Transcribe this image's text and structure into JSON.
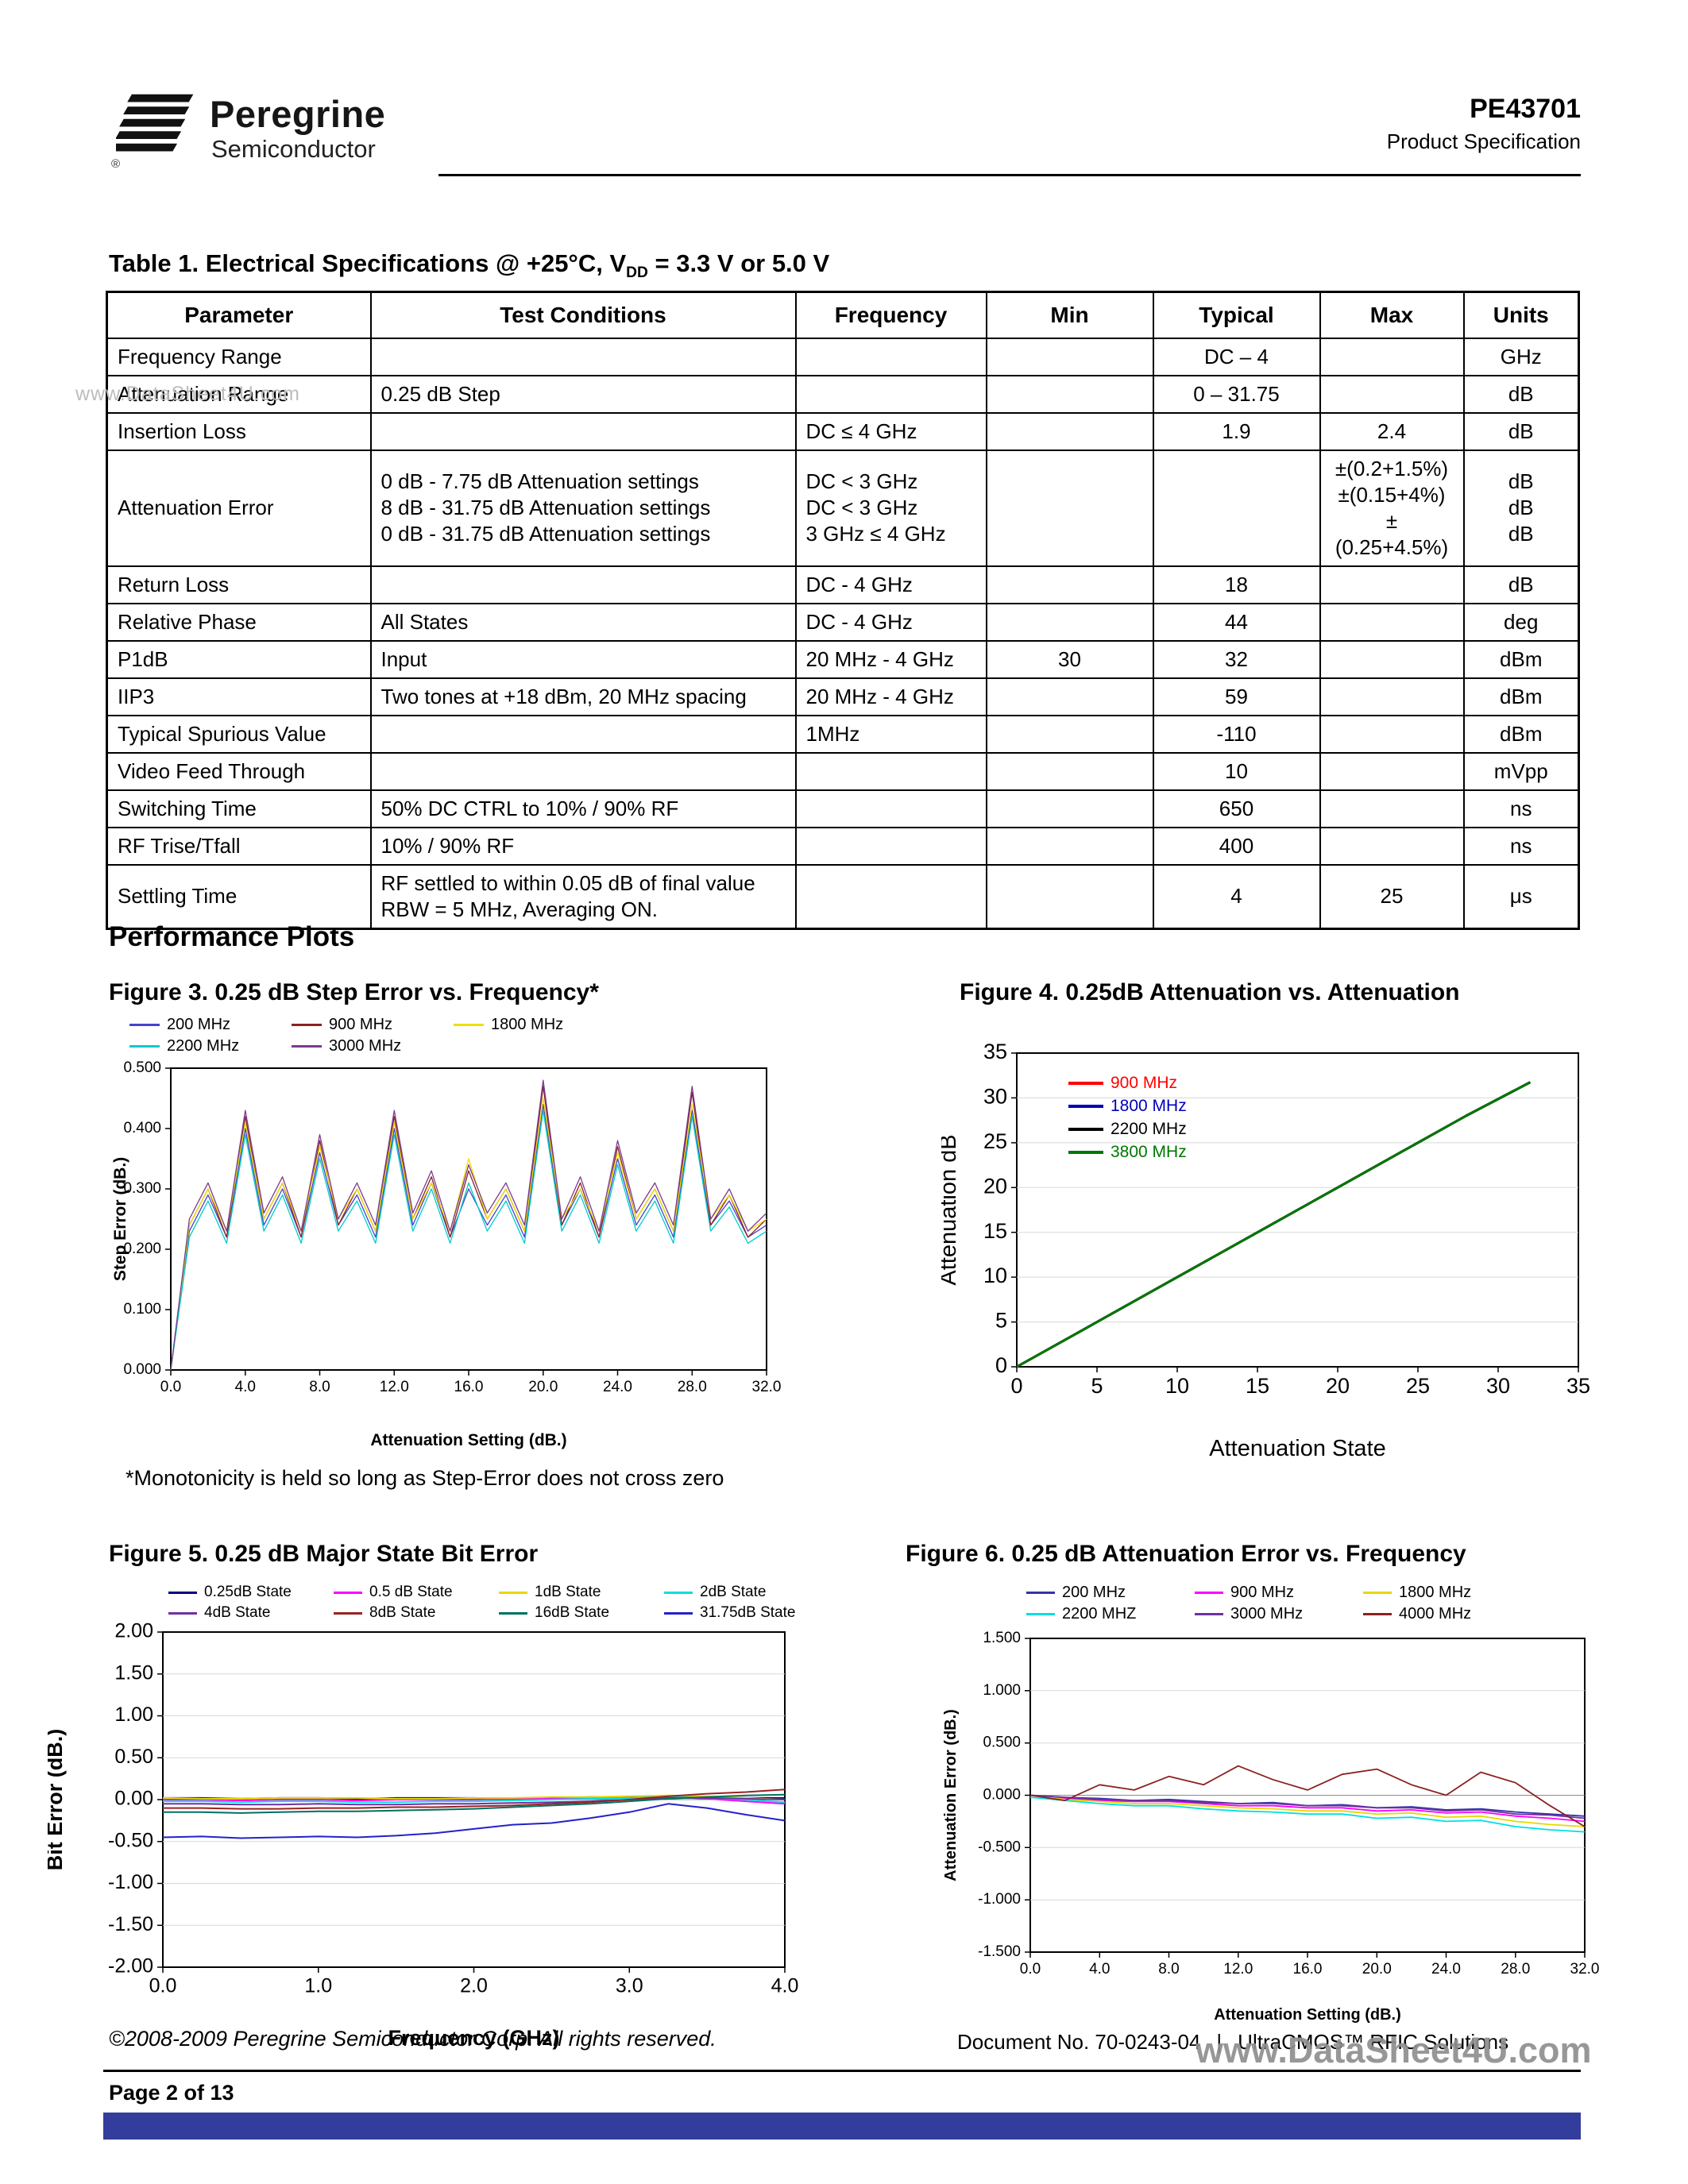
{
  "header": {
    "brand_name": "Peregrine",
    "brand_reg": "®",
    "brand_sub": "Semiconductor",
    "part_number": "PE43701",
    "doc_type": "Product Specification"
  },
  "watermarks": {
    "side": "www.DataSheet4U.com",
    "footer": "www.DataSheet4U.com"
  },
  "table": {
    "title_prefix": "Table 1. Electrical Specifications @ +25°C, V",
    "title_sub": "DD",
    "title_suffix": " = 3.3 V or 5.0 V",
    "headers": [
      "Parameter",
      "Test Conditions",
      "Frequency",
      "Min",
      "Typical",
      "Max",
      "Units"
    ],
    "rows": [
      {
        "parameter": "Frequency Range",
        "conditions": "",
        "frequency": "",
        "min": "",
        "typical": "DC – 4",
        "max": "",
        "units": "GHz"
      },
      {
        "parameter": "Attenuation Range",
        "conditions": "0.25 dB Step",
        "frequency": "",
        "min": "",
        "typical": "0 – 31.75",
        "max": "",
        "units": "dB"
      },
      {
        "parameter": "Insertion Loss",
        "conditions": "",
        "frequency": "DC  ≤ 4 GHz",
        "min": "",
        "typical": "1.9",
        "max": "2.4",
        "units": "dB"
      },
      {
        "parameter": "Attenuation Error",
        "conditions": "0 dB - 7.75 dB Attenuation settings\n8 dB - 31.75 dB Attenuation settings\n0 dB - 31.75 dB Attenuation settings",
        "frequency": "DC < 3 GHz\nDC < 3 GHz\n3 GHz ≤ 4 GHz",
        "min": "",
        "typical": "",
        "max": "±(0.2+1.5%)\n±(0.15+4%)\n±(0.25+4.5%)",
        "units": "dB\ndB\ndB"
      },
      {
        "parameter": "Return Loss",
        "conditions": "",
        "frequency": "DC - 4 GHz",
        "min": "",
        "typical": "18",
        "max": "",
        "units": "dB"
      },
      {
        "parameter": "Relative Phase",
        "conditions": "All States",
        "frequency": "DC - 4 GHz",
        "min": "",
        "typical": "44",
        "max": "",
        "units": "deg"
      },
      {
        "parameter": "P1dB",
        "conditions": "Input",
        "frequency": "20 MHz - 4 GHz",
        "min": "30",
        "typical": "32",
        "max": "",
        "units": "dBm"
      },
      {
        "parameter": "IIP3",
        "conditions": "Two tones at +18 dBm, 20 MHz spacing",
        "frequency": "20 MHz - 4 GHz",
        "min": "",
        "typical": "59",
        "max": "",
        "units": "dBm"
      },
      {
        "parameter": "Typical Spurious Value",
        "conditions": "",
        "frequency": "1MHz",
        "min": "",
        "typical": "-110",
        "max": "",
        "units": "dBm"
      },
      {
        "parameter": "Video Feed Through",
        "conditions": "",
        "frequency": "",
        "min": "",
        "typical": "10",
        "max": "",
        "units": "mVpp"
      },
      {
        "parameter": "Switching Time",
        "conditions": "50% DC CTRL to 10% / 90% RF",
        "frequency": "",
        "min": "",
        "typical": "650",
        "max": "",
        "units": "ns"
      },
      {
        "parameter": "RF Trise/Tfall",
        "conditions": "10% / 90% RF",
        "frequency": "",
        "min": "",
        "typical": "400",
        "max": "",
        "units": "ns"
      },
      {
        "parameter": "Settling Time",
        "conditions": "RF settled to within 0.05 dB of final value\nRBW = 5 MHz, Averaging ON.",
        "frequency": "",
        "min": "",
        "typical": "4",
        "max": "25",
        "units": "μs"
      }
    ]
  },
  "sections": {
    "performance_plots": "Performance Plots"
  },
  "notes": {
    "fig3_note": "*Monotonicity is held so long as Step-Error does not cross zero"
  },
  "footer": {
    "copyright": "©2008-2009 Peregrine Semiconductor Corp.  All rights reserved.",
    "doc_no": "Document No. 70-0243-04",
    "separator": "|",
    "product_line": "UltraCMOS™ RFIC Solutions",
    "page": "Page  2 of 13"
  },
  "colors": {
    "footer_bar": "#333d9b",
    "watermark_footer": "#8f8f8f",
    "watermark_side": "#bdbdbd"
  },
  "chart_data": [
    {
      "type": "line",
      "title": "Figure 3. 0.25 dB Step Error vs. Frequency*",
      "xlabel": "Attenuation Setting (dB.)",
      "ylabel": "Step Error (dB.)",
      "xlim": [
        0,
        32
      ],
      "ylim": [
        0,
        0.5
      ],
      "xticks": [
        0,
        4,
        8,
        12,
        16,
        20,
        24,
        28,
        32
      ],
      "xtick_decimals": 1,
      "yticks": [
        0,
        0.1,
        0.2,
        0.3,
        0.4,
        0.5
      ],
      "ytick_decimals": 3,
      "grid": "none",
      "line_width": 1.3,
      "x_start": 0,
      "x_step": 1,
      "legend_position": "above",
      "legend_colored_text": false,
      "series": [
        {
          "name": "200 MHz",
          "color": "#4444cc",
          "values": [
            0.0,
            0.23,
            0.29,
            0.22,
            0.4,
            0.24,
            0.3,
            0.22,
            0.36,
            0.24,
            0.29,
            0.22,
            0.4,
            0.24,
            0.31,
            0.22,
            0.3,
            0.24,
            0.29,
            0.22,
            0.44,
            0.24,
            0.3,
            0.22,
            0.35,
            0.24,
            0.29,
            0.22,
            0.43,
            0.24,
            0.28,
            0.22,
            0.24
          ]
        },
        {
          "name": "900 MHz",
          "color": "#8b2222",
          "values": [
            0.0,
            0.24,
            0.3,
            0.22,
            0.42,
            0.25,
            0.31,
            0.22,
            0.38,
            0.24,
            0.3,
            0.23,
            0.42,
            0.25,
            0.32,
            0.22,
            0.33,
            0.25,
            0.3,
            0.23,
            0.47,
            0.24,
            0.31,
            0.22,
            0.37,
            0.25,
            0.3,
            0.23,
            0.46,
            0.24,
            0.29,
            0.22,
            0.25
          ]
        },
        {
          "name": "1800 MHz",
          "color": "#efe000",
          "values": [
            0.0,
            0.24,
            0.3,
            0.23,
            0.41,
            0.25,
            0.31,
            0.23,
            0.37,
            0.25,
            0.3,
            0.23,
            0.41,
            0.25,
            0.31,
            0.23,
            0.35,
            0.25,
            0.3,
            0.23,
            0.45,
            0.25,
            0.3,
            0.23,
            0.36,
            0.25,
            0.3,
            0.23,
            0.44,
            0.25,
            0.29,
            0.23,
            0.25
          ]
        },
        {
          "name": "2200 MHz",
          "color": "#00cccc",
          "values": [
            0.0,
            0.22,
            0.28,
            0.21,
            0.39,
            0.23,
            0.29,
            0.21,
            0.35,
            0.23,
            0.28,
            0.21,
            0.39,
            0.23,
            0.3,
            0.21,
            0.31,
            0.23,
            0.28,
            0.21,
            0.43,
            0.23,
            0.29,
            0.21,
            0.34,
            0.23,
            0.28,
            0.21,
            0.42,
            0.23,
            0.27,
            0.21,
            0.23
          ]
        },
        {
          "name": "3000 MHz",
          "color": "#7a3b8f",
          "values": [
            0.0,
            0.25,
            0.31,
            0.23,
            0.43,
            0.26,
            0.32,
            0.23,
            0.39,
            0.25,
            0.31,
            0.24,
            0.43,
            0.26,
            0.33,
            0.23,
            0.34,
            0.26,
            0.31,
            0.24,
            0.48,
            0.25,
            0.32,
            0.23,
            0.38,
            0.26,
            0.31,
            0.24,
            0.47,
            0.25,
            0.3,
            0.23,
            0.26
          ]
        }
      ]
    },
    {
      "type": "line",
      "title": "Figure 4. 0.25dB Attenuation vs. Attenuation",
      "xlabel": "Attenuation  State",
      "ylabel": "Attenuation  dB",
      "xlim": [
        0,
        35
      ],
      "ylim": [
        0,
        35
      ],
      "xticks": [
        0,
        5,
        10,
        15,
        20,
        25,
        30,
        35
      ],
      "xtick_decimals": 0,
      "yticks": [
        0,
        5,
        10,
        15,
        20,
        25,
        30,
        35
      ],
      "ytick_decimals": 0,
      "grid": "h",
      "line_width": 3,
      "x_start": 0,
      "x_step": 4,
      "legend_position": "inside",
      "legend_colored_text": true,
      "series": [
        {
          "name": "900 MHz",
          "color": "#ff0000",
          "values": [
            0,
            4,
            8,
            12,
            16,
            20,
            24,
            28,
            31.75
          ]
        },
        {
          "name": "1800 MHz",
          "color": "#0000bb",
          "values": [
            0,
            4,
            8,
            12,
            16,
            20,
            24,
            28,
            31.75
          ]
        },
        {
          "name": "2200 MHz",
          "color": "#000000",
          "values": [
            0,
            4,
            8,
            12,
            16,
            20,
            24,
            28,
            31.75
          ]
        },
        {
          "name": "3800 MHz",
          "color": "#007700",
          "values": [
            0,
            4,
            8,
            12,
            16,
            20,
            24,
            28,
            31.75
          ]
        }
      ]
    },
    {
      "type": "line",
      "title": "Figure 5.  0.25 dB Major State Bit Error",
      "xlabel": "Frequency (GHz)",
      "ylabel": "Bit Error (dB.)",
      "xlim": [
        0,
        4
      ],
      "ylim": [
        -2,
        2
      ],
      "xticks": [
        0,
        1,
        2,
        3,
        4
      ],
      "xtick_decimals": 1,
      "yticks": [
        -2,
        -1.5,
        -1,
        -0.5,
        0,
        0.5,
        1,
        1.5,
        2
      ],
      "ytick_decimals": 2,
      "grid": "h",
      "line_width": 2,
      "x_start": 0,
      "x_step": 0.25,
      "legend_position": "above",
      "legend_colored_text": false,
      "series": [
        {
          "name": "0.25dB State",
          "color": "#000080",
          "values": [
            0.02,
            0.02,
            0.01,
            0.02,
            0.02,
            0.01,
            0.02,
            0.02,
            0.02,
            0.01,
            0.02,
            0.03,
            0.03,
            0.04,
            0.03,
            0.02,
            0.02
          ]
        },
        {
          "name": "0.5 dB State",
          "color": "#ff00ff",
          "values": [
            0.0,
            0.0,
            -0.01,
            0.0,
            0.0,
            -0.01,
            0.0,
            0.0,
            0.0,
            0.01,
            0.01,
            0.02,
            0.02,
            0.03,
            0.01,
            -0.02,
            -0.05
          ]
        },
        {
          "name": "1dB State",
          "color": "#e8d800",
          "values": [
            0.02,
            0.01,
            0.01,
            0.02,
            0.02,
            0.02,
            0.01,
            0.01,
            0.02,
            0.02,
            0.03,
            0.03,
            0.04,
            0.05,
            0.04,
            0.02,
            0.0
          ]
        },
        {
          "name": "2dB State",
          "color": "#00e0e0",
          "values": [
            -0.02,
            -0.02,
            -0.03,
            -0.02,
            -0.02,
            -0.03,
            -0.03,
            -0.02,
            -0.02,
            -0.01,
            0.0,
            0.01,
            0.02,
            0.03,
            0.02,
            0.0,
            -0.03
          ]
        },
        {
          "name": "4dB State",
          "color": "#7030a0",
          "values": [
            -0.05,
            -0.05,
            -0.06,
            -0.06,
            -0.05,
            -0.06,
            -0.06,
            -0.05,
            -0.05,
            -0.04,
            -0.03,
            -0.02,
            0.0,
            0.02,
            0.02,
            0.01,
            0.0
          ]
        },
        {
          "name": "8dB State",
          "color": "#992222",
          "values": [
            -0.1,
            -0.1,
            -0.11,
            -0.11,
            -0.1,
            -0.1,
            -0.09,
            -0.09,
            -0.08,
            -0.07,
            -0.05,
            -0.03,
            0.0,
            0.04,
            0.07,
            0.09,
            0.12
          ]
        },
        {
          "name": "16dB State",
          "color": "#007060",
          "values": [
            -0.15,
            -0.15,
            -0.16,
            -0.15,
            -0.14,
            -0.14,
            -0.13,
            -0.12,
            -0.11,
            -0.09,
            -0.07,
            -0.05,
            -0.02,
            0.01,
            0.03,
            0.05,
            0.06
          ]
        },
        {
          "name": "31.75dB State",
          "color": "#2222cc",
          "values": [
            -0.45,
            -0.44,
            -0.46,
            -0.45,
            -0.44,
            -0.45,
            -0.43,
            -0.4,
            -0.35,
            -0.3,
            -0.28,
            -0.22,
            -0.15,
            -0.05,
            -0.1,
            -0.18,
            -0.25
          ]
        }
      ]
    },
    {
      "type": "line",
      "title": "Figure 6. 0.25 dB  Attenuation Error vs. Frequency",
      "xlabel": "Attenuation Setting (dB.)",
      "ylabel": "Attenuation Error (dB.)",
      "xlim": [
        0,
        32
      ],
      "ylim": [
        -1.5,
        1.5
      ],
      "xticks": [
        0,
        4,
        8,
        12,
        16,
        20,
        24,
        28,
        32
      ],
      "xtick_decimals": 1,
      "yticks": [
        -1.5,
        -1,
        -0.5,
        0,
        0.5,
        1,
        1.5
      ],
      "ytick_decimals": 3,
      "grid": "h",
      "line_width": 1.8,
      "x_start": 0,
      "x_step": 2,
      "legend_position": "above",
      "legend_colored_text": false,
      "series": [
        {
          "name": "200 MHz",
          "color": "#3333aa",
          "values": [
            0.0,
            -0.02,
            -0.03,
            -0.05,
            -0.04,
            -0.06,
            -0.08,
            -0.07,
            -0.1,
            -0.09,
            -0.12,
            -0.11,
            -0.14,
            -0.13,
            -0.16,
            -0.18,
            -0.2
          ]
        },
        {
          "name": "900 MHz",
          "color": "#ff00ff",
          "values": [
            0.0,
            -0.03,
            -0.05,
            -0.06,
            -0.06,
            -0.08,
            -0.1,
            -0.1,
            -0.12,
            -0.12,
            -0.15,
            -0.14,
            -0.17,
            -0.16,
            -0.2,
            -0.22,
            -0.25
          ]
        },
        {
          "name": "1800 MHz",
          "color": "#e8d800",
          "values": [
            0.0,
            -0.04,
            -0.06,
            -0.08,
            -0.08,
            -0.1,
            -0.12,
            -0.13,
            -0.15,
            -0.15,
            -0.18,
            -0.17,
            -0.21,
            -0.2,
            -0.25,
            -0.28,
            -0.3
          ]
        },
        {
          "name": "2200 MHZ",
          "color": "#00e0e0",
          "values": [
            -0.02,
            -0.05,
            -0.08,
            -0.1,
            -0.1,
            -0.13,
            -0.15,
            -0.16,
            -0.18,
            -0.18,
            -0.22,
            -0.21,
            -0.25,
            -0.24,
            -0.3,
            -0.33,
            -0.35
          ]
        },
        {
          "name": "3000 MHz",
          "color": "#7030a0",
          "values": [
            0.0,
            -0.02,
            -0.04,
            -0.05,
            -0.05,
            -0.07,
            -0.08,
            -0.08,
            -0.1,
            -0.1,
            -0.12,
            -0.12,
            -0.15,
            -0.14,
            -0.18,
            -0.19,
            -0.22
          ]
        },
        {
          "name": "4000 MHz",
          "color": "#8b2222",
          "values": [
            0.0,
            -0.05,
            0.1,
            0.05,
            0.18,
            0.1,
            0.28,
            0.15,
            0.05,
            0.2,
            0.25,
            0.1,
            0.0,
            0.22,
            0.12,
            -0.1,
            -0.3
          ]
        }
      ]
    }
  ]
}
